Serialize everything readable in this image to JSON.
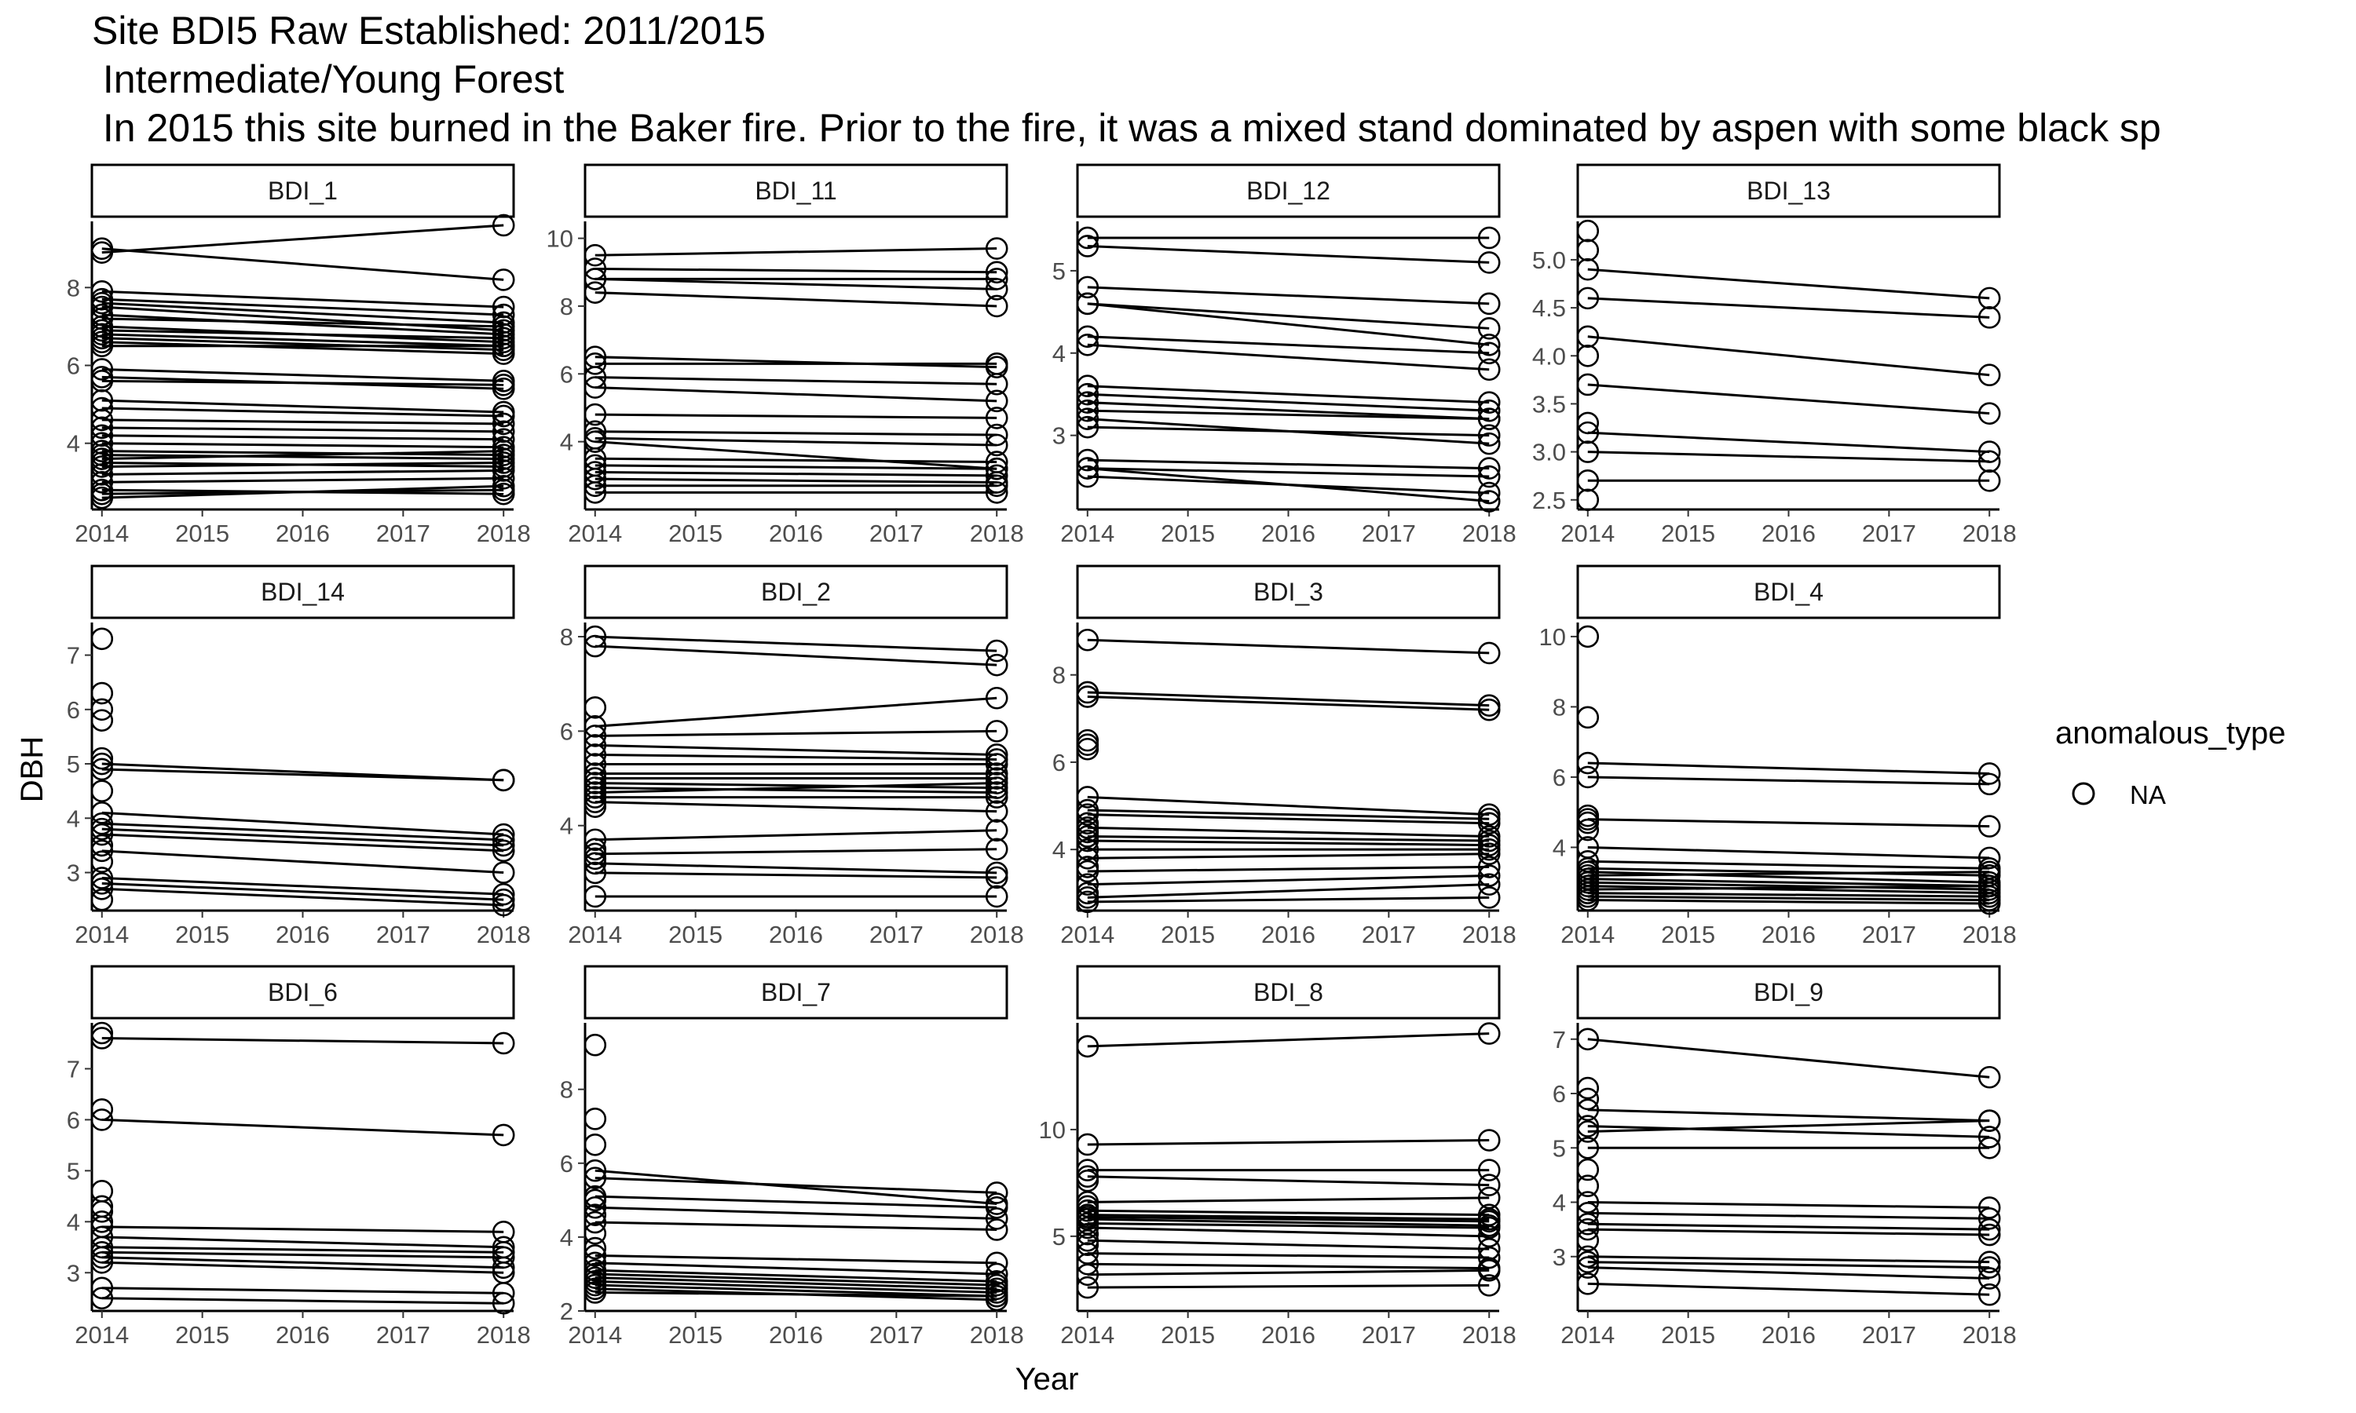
{
  "chart_data": {
    "type": "line",
    "title": "Site BDI5 Raw Established: 2011/2015",
    "subtitle_lines": [
      " Intermediate/Young Forest",
      " In 2015 this site burned in the Baker fire. Prior to the fire, it was a mixed stand dominated by aspen with some black sp"
    ],
    "xlabel": "Year",
    "ylabel": "DBH",
    "x_ticks": [
      2014,
      2015,
      2016,
      2017,
      2018
    ],
    "x_range": [
      2013.9,
      2018.1
    ],
    "legend": {
      "title": "anomalous_type",
      "entries": [
        "NA"
      ],
      "placement": "right"
    },
    "grid": false,
    "facets": [
      {
        "name": "BDI_1",
        "ylim": [
          2.3,
          9.7
        ],
        "y_ticks": [
          4,
          6,
          8
        ],
        "lines": [
          [
            9.0,
            8.2
          ],
          [
            8.9,
            9.6
          ],
          [
            7.9,
            7.5
          ],
          [
            7.7,
            7.3
          ],
          [
            7.6,
            7.1
          ],
          [
            7.5,
            6.9
          ],
          [
            7.3,
            6.8
          ],
          [
            7.2,
            7.0
          ],
          [
            7.0,
            6.6
          ],
          [
            6.9,
            6.7
          ],
          [
            6.8,
            6.5
          ],
          [
            6.7,
            6.4
          ],
          [
            6.6,
            6.3
          ],
          [
            6.5,
            6.5
          ],
          [
            5.9,
            5.6
          ],
          [
            5.7,
            5.4
          ],
          [
            5.6,
            5.5
          ],
          [
            5.1,
            4.8
          ],
          [
            4.9,
            4.7
          ],
          [
            4.6,
            4.5
          ],
          [
            4.4,
            4.3
          ],
          [
            4.2,
            4.1
          ],
          [
            4.0,
            3.9
          ],
          [
            3.8,
            3.7
          ],
          [
            3.7,
            3.6
          ],
          [
            3.6,
            3.8
          ],
          [
            3.5,
            3.4
          ],
          [
            3.4,
            3.5
          ],
          [
            3.2,
            3.3
          ],
          [
            3.0,
            3.1
          ],
          [
            2.8,
            2.7
          ],
          [
            2.7,
            2.8
          ],
          [
            2.6,
            2.9
          ]
        ],
        "singles": []
      },
      {
        "name": "BDI_11",
        "ylim": [
          2.0,
          10.5
        ],
        "y_ticks": [
          4,
          6,
          8,
          10
        ],
        "lines": [
          [
            9.5,
            9.7
          ],
          [
            9.1,
            9.0
          ],
          [
            8.8,
            8.8
          ],
          [
            8.8,
            8.5
          ],
          [
            8.4,
            8.0
          ],
          [
            6.5,
            6.2
          ],
          [
            6.3,
            6.3
          ],
          [
            5.9,
            5.7
          ],
          [
            5.6,
            5.2
          ],
          [
            4.8,
            4.7
          ],
          [
            4.3,
            4.2
          ],
          [
            4.1,
            3.9
          ],
          [
            4.0,
            3.2
          ],
          [
            3.5,
            3.4
          ],
          [
            3.3,
            3.2
          ],
          [
            3.1,
            3.0
          ],
          [
            2.9,
            2.8
          ],
          [
            2.7,
            2.7
          ],
          [
            2.5,
            2.5
          ]
        ],
        "singles": []
      },
      {
        "name": "BDI_12",
        "ylim": [
          2.1,
          5.6
        ],
        "y_ticks": [
          3,
          4,
          5
        ],
        "lines": [
          [
            5.4,
            5.4
          ],
          [
            5.3,
            5.1
          ],
          [
            4.8,
            4.6
          ],
          [
            4.6,
            4.3
          ],
          [
            4.6,
            4.1
          ],
          [
            4.2,
            4.0
          ],
          [
            4.1,
            3.8
          ],
          [
            3.6,
            3.4
          ],
          [
            3.5,
            3.3
          ],
          [
            3.4,
            3.2
          ],
          [
            3.3,
            3.2
          ],
          [
            3.2,
            2.9
          ],
          [
            3.1,
            3.0
          ],
          [
            2.7,
            2.6
          ],
          [
            2.6,
            2.5
          ],
          [
            2.5,
            2.3
          ],
          [
            2.6,
            2.2
          ]
        ],
        "singles": []
      },
      {
        "name": "BDI_13",
        "ylim": [
          2.4,
          5.4
        ],
        "y_ticks": [
          2.5,
          3.0,
          3.5,
          4.0,
          4.5,
          5.0
        ],
        "lines": [
          [
            4.9,
            4.6
          ],
          [
            4.6,
            4.4
          ],
          [
            4.2,
            3.8
          ],
          [
            3.7,
            3.4
          ],
          [
            3.2,
            3.0
          ],
          [
            3.0,
            2.9
          ],
          [
            2.7,
            2.7
          ]
        ],
        "singles": [
          5.3,
          5.1,
          4.0,
          3.3,
          2.5
        ]
      },
      {
        "name": "BDI_14",
        "ylim": [
          2.3,
          7.6
        ],
        "y_ticks": [
          3,
          4,
          5,
          6,
          7
        ],
        "lines": [
          [
            5.0,
            4.7
          ],
          [
            4.9,
            4.7
          ],
          [
            4.1,
            3.7
          ],
          [
            3.9,
            3.6
          ],
          [
            3.8,
            3.5
          ],
          [
            3.7,
            3.4
          ],
          [
            3.4,
            3.0
          ],
          [
            2.9,
            2.6
          ],
          [
            2.8,
            2.5
          ],
          [
            2.7,
            2.4
          ]
        ],
        "singles": [
          7.3,
          6.3,
          6.0,
          5.8,
          5.1,
          4.5,
          3.5,
          3.2,
          2.5
        ]
      },
      {
        "name": "BDI_2",
        "ylim": [
          2.2,
          8.3
        ],
        "y_ticks": [
          4,
          6,
          8
        ],
        "lines": [
          [
            8.0,
            7.7
          ],
          [
            7.8,
            7.4
          ],
          [
            6.1,
            6.7
          ],
          [
            5.9,
            6.0
          ],
          [
            5.7,
            5.5
          ],
          [
            5.5,
            5.4
          ],
          [
            5.3,
            5.3
          ],
          [
            5.1,
            5.1
          ],
          [
            5.0,
            5.0
          ],
          [
            4.9,
            4.8
          ],
          [
            4.8,
            4.7
          ],
          [
            4.7,
            4.9
          ],
          [
            4.6,
            4.6
          ],
          [
            4.5,
            4.3
          ],
          [
            3.7,
            3.9
          ],
          [
            3.4,
            3.5
          ],
          [
            3.2,
            3.0
          ],
          [
            3.0,
            2.9
          ],
          [
            2.5,
            2.5
          ]
        ],
        "singles": [
          6.5,
          4.4,
          3.5,
          3.3
        ]
      },
      {
        "name": "BDI_3",
        "ylim": [
          2.6,
          9.2
        ],
        "y_ticks": [
          4,
          6,
          8
        ],
        "lines": [
          [
            8.8,
            8.5
          ],
          [
            7.6,
            7.3
          ],
          [
            7.5,
            7.2
          ],
          [
            5.2,
            4.8
          ],
          [
            4.9,
            4.7
          ],
          [
            4.8,
            4.6
          ],
          [
            4.5,
            4.3
          ],
          [
            4.3,
            4.2
          ],
          [
            4.2,
            4.1
          ],
          [
            4.0,
            4.0
          ],
          [
            3.8,
            3.9
          ],
          [
            3.5,
            3.6
          ],
          [
            3.2,
            3.4
          ],
          [
            2.9,
            3.2
          ],
          [
            2.8,
            2.9
          ]
        ],
        "singles": [
          6.5,
          6.4,
          6.3,
          4.6,
          4.4,
          3.6,
          3.0
        ]
      },
      {
        "name": "BDI_4",
        "ylim": [
          2.2,
          10.4
        ],
        "y_ticks": [
          4,
          6,
          8,
          10
        ],
        "lines": [
          [
            6.4,
            6.1
          ],
          [
            6.0,
            5.8
          ],
          [
            4.8,
            4.6
          ],
          [
            4.0,
            3.7
          ],
          [
            3.6,
            3.4
          ],
          [
            3.4,
            3.2
          ],
          [
            3.3,
            3.0
          ],
          [
            3.2,
            3.3
          ],
          [
            3.1,
            2.9
          ],
          [
            3.0,
            2.8
          ],
          [
            2.9,
            2.7
          ],
          [
            2.8,
            2.9
          ],
          [
            2.7,
            2.6
          ],
          [
            2.6,
            2.5
          ],
          [
            2.5,
            2.4
          ]
        ],
        "singles": [
          10.0,
          7.7,
          4.9,
          4.7,
          4.5,
          3.0,
          2.7
        ]
      },
      {
        "name": "BDI_6",
        "ylim": [
          2.25,
          7.9
        ],
        "y_ticks": [
          3,
          4,
          5,
          6,
          7
        ],
        "lines": [
          [
            7.6,
            7.5
          ],
          [
            6.0,
            5.7
          ],
          [
            3.9,
            3.8
          ],
          [
            3.7,
            3.5
          ],
          [
            3.5,
            3.4
          ],
          [
            3.4,
            3.3
          ],
          [
            3.3,
            3.1
          ],
          [
            3.2,
            3.0
          ],
          [
            2.7,
            2.6
          ],
          [
            2.5,
            2.4
          ]
        ],
        "singles": [
          7.7,
          6.2,
          4.6,
          4.3,
          4.2,
          4.0
        ]
      },
      {
        "name": "BDI_7",
        "ylim": [
          2.0,
          9.8
        ],
        "y_ticks": [
          2,
          4,
          6,
          8
        ],
        "lines": [
          [
            5.8,
            4.9
          ],
          [
            5.6,
            5.2
          ],
          [
            5.1,
            4.8
          ],
          [
            4.8,
            4.5
          ],
          [
            4.4,
            4.2
          ],
          [
            3.5,
            3.3
          ],
          [
            3.3,
            3.0
          ],
          [
            3.1,
            2.8
          ],
          [
            3.0,
            2.7
          ],
          [
            2.9,
            2.6
          ],
          [
            2.8,
            2.5
          ],
          [
            2.7,
            2.4
          ],
          [
            2.6,
            2.3
          ],
          [
            2.5,
            2.4
          ]
        ],
        "singles": [
          9.2,
          7.2,
          6.5,
          5.0,
          4.6,
          4.1,
          3.7
        ]
      },
      {
        "name": "BDI_8",
        "ylim": [
          1.5,
          15.0
        ],
        "y_ticks": [
          5,
          10
        ],
        "lines": [
          [
            13.9,
            14.5
          ],
          [
            9.3,
            9.5
          ],
          [
            8.1,
            8.1
          ],
          [
            7.8,
            7.4
          ],
          [
            6.6,
            6.8
          ],
          [
            6.2,
            6.0
          ],
          [
            6.0,
            5.8
          ],
          [
            5.9,
            5.7
          ],
          [
            5.8,
            5.5
          ],
          [
            5.6,
            5.4
          ],
          [
            5.4,
            5.0
          ],
          [
            4.8,
            4.4
          ],
          [
            4.2,
            4.0
          ],
          [
            3.7,
            3.5
          ],
          [
            3.2,
            3.4
          ],
          [
            2.6,
            2.7
          ]
        ],
        "singles": [
          7.6,
          6.4,
          5.1,
          4.6
        ]
      },
      {
        "name": "BDI_9",
        "ylim": [
          2.0,
          7.3
        ],
        "y_ticks": [
          3,
          4,
          5,
          6,
          7
        ],
        "lines": [
          [
            7.0,
            6.3
          ],
          [
            5.7,
            5.5
          ],
          [
            5.4,
            5.2
          ],
          [
            5.3,
            5.5
          ],
          [
            5.0,
            5.0
          ],
          [
            4.0,
            3.9
          ],
          [
            3.8,
            3.7
          ],
          [
            3.6,
            3.5
          ],
          [
            3.5,
            3.4
          ],
          [
            3.0,
            2.9
          ],
          [
            2.9,
            2.8
          ],
          [
            2.8,
            2.6
          ],
          [
            2.5,
            2.3
          ]
        ],
        "singles": [
          6.1,
          5.9,
          4.6,
          4.3,
          3.3
        ]
      }
    ]
  }
}
